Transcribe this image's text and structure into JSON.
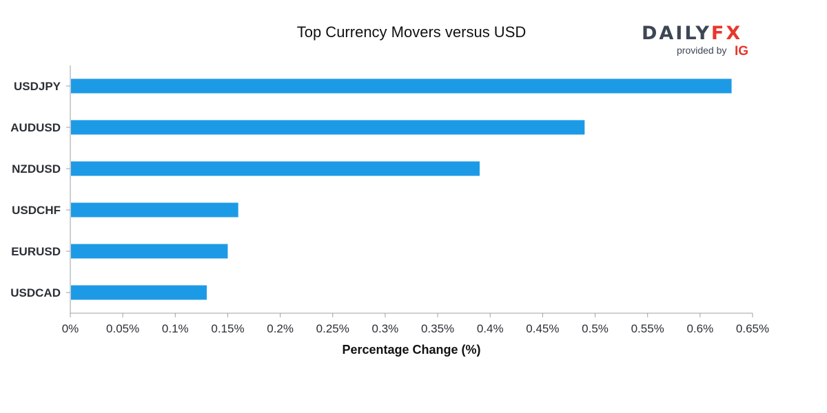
{
  "chart_data": {
    "type": "bar",
    "orientation": "horizontal",
    "title": "Top Currency Movers versus USD",
    "xlabel": "Percentage Change (%)",
    "ylabel": "",
    "categories": [
      "USDJPY",
      "AUDUSD",
      "NZDUSD",
      "USDCHF",
      "EURUSD",
      "USDCAD"
    ],
    "values": [
      0.63,
      0.49,
      0.39,
      0.16,
      0.15,
      0.13
    ],
    "xlim": [
      0,
      0.65
    ],
    "ticks": [
      0,
      0.05,
      0.1,
      0.15,
      0.2,
      0.25,
      0.3,
      0.35,
      0.4,
      0.45,
      0.5,
      0.55,
      0.6,
      0.65
    ],
    "tick_labels": [
      "0%",
      "0.05%",
      "0.1%",
      "0.15%",
      "0.2%",
      "0.25%",
      "0.3%",
      "0.35%",
      "0.4%",
      "0.45%",
      "0.5%",
      "0.55%",
      "0.6%",
      "0.65%"
    ],
    "grid": false,
    "bar_color": "#1d9ae6"
  },
  "branding": {
    "logo_daily": "DAILY",
    "logo_fx": "FX",
    "provided_by": "provided by",
    "ig": "IG",
    "daily_color": "#3c4654",
    "fx_color": "#e8372c",
    "ig_color": "#e8372c"
  }
}
